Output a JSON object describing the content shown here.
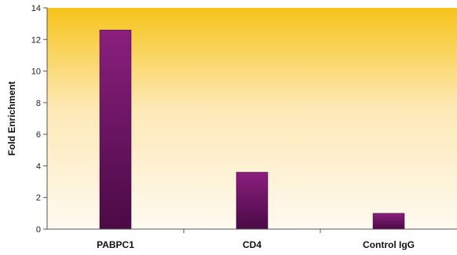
{
  "chart_data": {
    "type": "bar",
    "title": "",
    "xlabel": "",
    "ylabel": "Fold Enrichment",
    "categories": [
      "PABPC1",
      "CD4",
      "Control IgG"
    ],
    "values": [
      12.6,
      3.6,
      1.0
    ],
    "ylim": [
      0,
      14
    ],
    "yticks": [
      0,
      2,
      4,
      6,
      8,
      10,
      12,
      14
    ],
    "grid": false,
    "legend": "none",
    "colors": {
      "bar_top": "#8a1f7e",
      "bar_bottom": "#4a0a45",
      "background_top": "#f7c31a",
      "background_bottom": "#fffaf0",
      "axis": "#555555"
    }
  }
}
